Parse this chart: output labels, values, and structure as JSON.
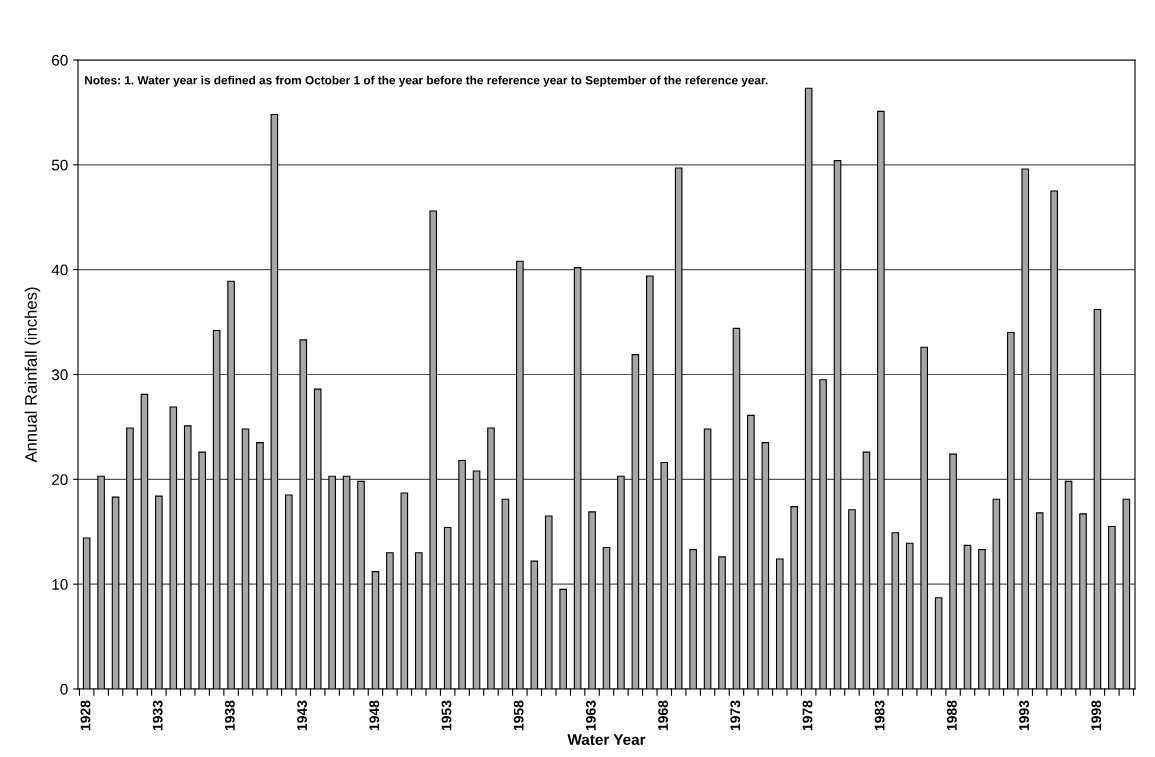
{
  "chart_data": {
    "type": "bar",
    "xlabel": "Water Year",
    "ylabel": "Annual Rainfall (inches)",
    "categories": [
      "1928",
      null,
      null,
      null,
      null,
      "1933",
      null,
      null,
      null,
      null,
      "1938",
      null,
      null,
      null,
      null,
      "1943",
      null,
      null,
      null,
      null,
      "1948",
      null,
      null,
      null,
      null,
      "1953",
      null,
      null,
      null,
      null,
      "1958",
      null,
      null,
      null,
      null,
      "1963",
      null,
      null,
      null,
      null,
      "1968",
      null,
      null,
      null,
      null,
      "1973",
      null,
      null,
      null,
      null,
      "1978",
      null,
      null,
      null,
      null,
      "1983",
      null,
      null,
      null,
      null,
      "1988",
      null,
      null,
      null,
      null,
      "1993",
      null,
      null,
      null,
      null,
      "1998",
      null,
      null
    ],
    "values": [
      14.4,
      20.3,
      18.3,
      24.9,
      28.1,
      18.4,
      26.9,
      25.1,
      22.6,
      34.2,
      38.9,
      24.8,
      23.5,
      54.8,
      18.5,
      33.3,
      28.6,
      20.3,
      20.3,
      19.8,
      11.2,
      13.0,
      18.7,
      13.0,
      45.6,
      15.4,
      21.8,
      20.8,
      24.9,
      18.1,
      40.8,
      12.2,
      16.5,
      9.5,
      40.2,
      16.9,
      13.5,
      20.3,
      31.9,
      39.4,
      21.6,
      49.7,
      13.3,
      24.8,
      12.6,
      34.4,
      26.1,
      23.5,
      12.4,
      17.4,
      57.3,
      29.5,
      50.4,
      17.1,
      22.6,
      55.1,
      14.9,
      13.9,
      32.6,
      8.7,
      22.4,
      13.7,
      13.3,
      18.1,
      34.0,
      49.6,
      16.8,
      47.5,
      19.8,
      16.7,
      36.2,
      15.5,
      18.1
    ],
    "color": "#a6a6a6",
    "ylim": [
      0,
      60
    ],
    "yticks": [
      0,
      10,
      20,
      30,
      40,
      50,
      60
    ],
    "grid": "y",
    "annotations": [
      "Notes: 1. Water year is defined as from October 1 of the year before the reference year to September of the reference year."
    ]
  }
}
